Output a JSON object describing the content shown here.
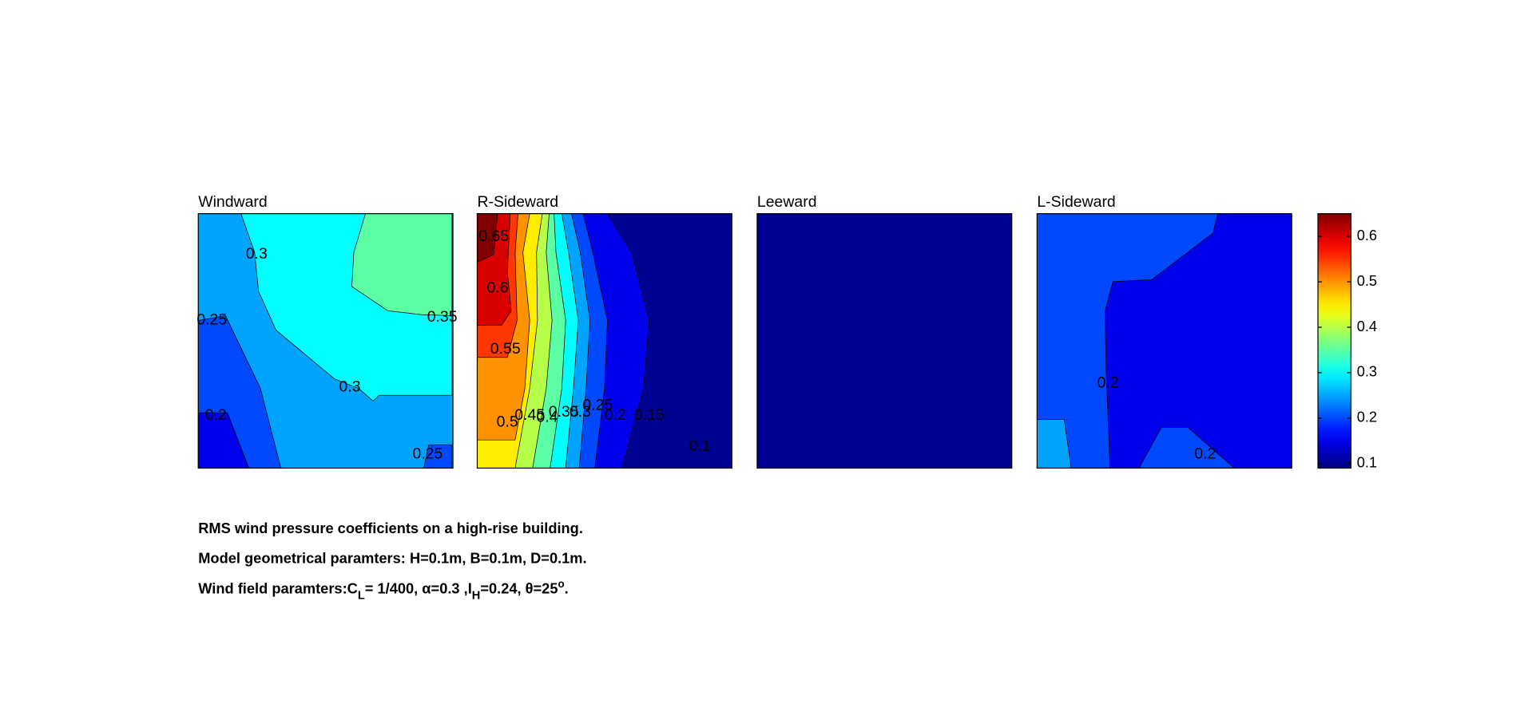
{
  "chart_data": {
    "type": "contour",
    "colormap": "jet",
    "clim": [
      0.09,
      0.65
    ],
    "colorbar": {
      "ylim": [
        0.09,
        0.65
      ],
      "yticks": [
        0.1,
        0.2,
        0.3,
        0.4,
        0.5,
        0.6
      ]
    },
    "panels": [
      {
        "title": "Windward",
        "regions": [
          {
            "level": 0.25
          },
          {
            "level": 0.2
          },
          {
            "level": 0.15
          },
          {
            "level": 0.3
          },
          {
            "level": 0.35
          },
          {
            "level": 0.2
          }
        ],
        "contour_labels": [
          0.3,
          0.25,
          0.35,
          0.3,
          0.2,
          0.25
        ]
      },
      {
        "title": "R-Sideward",
        "regions": [
          {
            "level": 0.1
          },
          {
            "level": 0.15
          },
          {
            "level": 0.2
          },
          {
            "level": 0.25
          },
          {
            "level": 0.3
          },
          {
            "level": 0.35
          },
          {
            "level": 0.4
          },
          {
            "level": 0.45
          },
          {
            "level": 0.5
          },
          {
            "level": 0.55
          },
          {
            "level": 0.6
          },
          {
            "level": 0.65
          }
        ],
        "contour_labels": [
          0.65,
          0.6,
          0.55,
          0.5,
          0.45,
          0.4,
          0.35,
          0.3,
          0.25,
          0.2,
          0.15,
          0.1
        ]
      },
      {
        "title": "Leeward",
        "regions": [
          {
            "level": 0.1
          }
        ],
        "contour_labels": []
      },
      {
        "title": "L-Sideward",
        "regions": [
          {
            "level": 0.2
          },
          {
            "level": 0.15
          },
          {
            "level": 0.25
          }
        ],
        "contour_labels": [
          0.2,
          0.2
        ]
      }
    ],
    "captions": [
      [
        {
          "text": "RMS wind pressure coefficients on a high-rise building."
        }
      ],
      [
        {
          "text": "Model geometrical paramters: H=0.1m, B=0.1m, D=0.1m."
        }
      ],
      [
        {
          "text": "Wind field paramters:C"
        },
        {
          "text": "L",
          "shift": "sub"
        },
        {
          "text": "= 1/400, α=0.3 ,I"
        },
        {
          "text": "H",
          "shift": "sub"
        },
        {
          "text": "=0.24, θ=25"
        },
        {
          "text": "o",
          "shift": "super"
        },
        {
          "text": "."
        }
      ]
    ]
  }
}
